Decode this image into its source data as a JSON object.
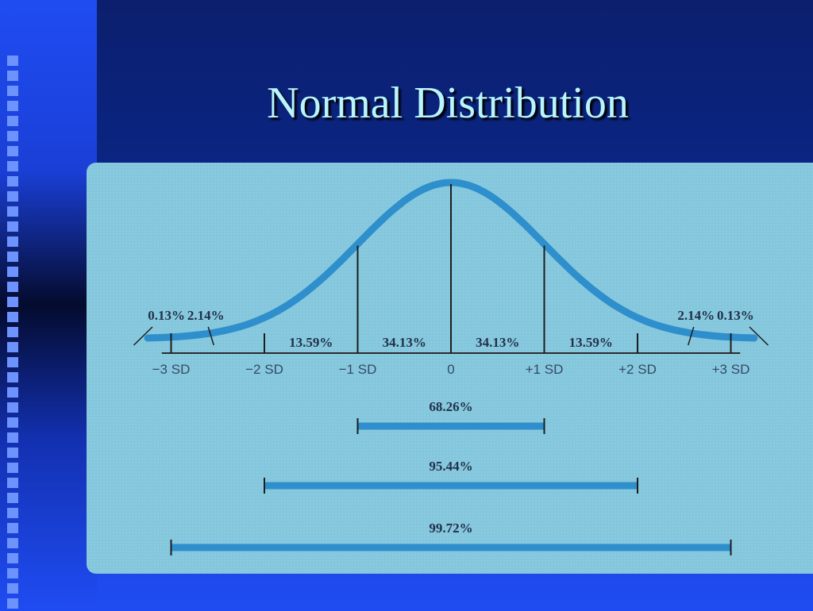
{
  "slide": {
    "title": "Normal Distribution",
    "colors": {
      "background": "#1f4cf2",
      "title_text": "#b9f5ff",
      "panel": "#84c7dd",
      "curve": "#2e8fcc",
      "text": "#23304a"
    }
  },
  "distribution": {
    "mean": 0,
    "sd_positions": [
      -3,
      -2,
      -1,
      0,
      1,
      2,
      3
    ],
    "tick_labels": [
      "−3 SD",
      "−2 SD",
      "−1 SD",
      "0",
      "+1 SD",
      "+2 SD",
      "+3 SD"
    ],
    "regions": [
      {
        "from": -4,
        "to": -3,
        "percent": "0.13%"
      },
      {
        "from": -3,
        "to": -2,
        "percent": "2.14%"
      },
      {
        "from": -2,
        "to": -1,
        "percent": "13.59%"
      },
      {
        "from": -1,
        "to": 0,
        "percent": "34.13%"
      },
      {
        "from": 0,
        "to": 1,
        "percent": "34.13%"
      },
      {
        "from": 1,
        "to": 2,
        "percent": "13.59%"
      },
      {
        "from": 2,
        "to": 3,
        "percent": "2.14%"
      },
      {
        "from": 3,
        "to": 4,
        "percent": "0.13%"
      }
    ],
    "ranges": [
      {
        "from": -1,
        "to": 1,
        "percent": "68.26%"
      },
      {
        "from": -2,
        "to": 2,
        "percent": "95.44%"
      },
      {
        "from": -3,
        "to": 3,
        "percent": "99.72%"
      }
    ]
  }
}
